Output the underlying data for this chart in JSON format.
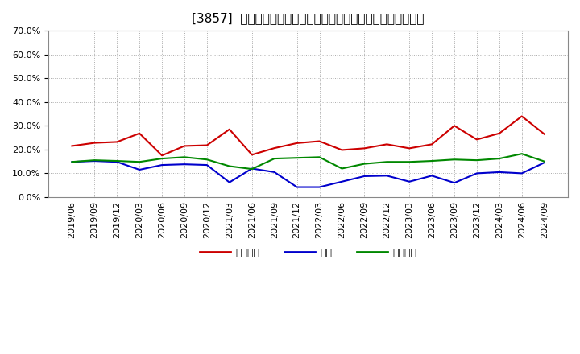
{
  "title": "[3857]  売上債権、在庫、買入債務の総資産に対する比率の推移",
  "xlabel": "",
  "ylabel": "",
  "ylim": [
    0.0,
    0.7
  ],
  "yticks": [
    0.0,
    0.1,
    0.2,
    0.3,
    0.4,
    0.5,
    0.6,
    0.7
  ],
  "ytick_labels": [
    "0.0%",
    "10.0%",
    "20.0%",
    "30.0%",
    "40.0%",
    "50.0%",
    "60.0%",
    "70.0%"
  ],
  "x_labels": [
    "2019/06",
    "2019/09",
    "2019/12",
    "2020/03",
    "2020/06",
    "2020/09",
    "2020/12",
    "2021/03",
    "2021/06",
    "2021/09",
    "2021/12",
    "2022/03",
    "2022/06",
    "2022/09",
    "2022/12",
    "2023/03",
    "2023/06",
    "2023/09",
    "2023/12",
    "2024/03",
    "2024/06",
    "2024/09"
  ],
  "series": {
    "売上債権": {
      "color": "#cc0000",
      "values": [
        0.215,
        0.228,
        0.232,
        0.268,
        0.175,
        0.215,
        0.218,
        0.285,
        0.178,
        0.206,
        0.227,
        0.235,
        0.198,
        0.205,
        0.222,
        0.205,
        0.222,
        0.3,
        0.242,
        0.268,
        0.34,
        0.265
      ]
    },
    "在庫": {
      "color": "#0000cc",
      "values": [
        0.148,
        0.152,
        0.148,
        0.115,
        0.135,
        0.138,
        0.135,
        0.062,
        0.12,
        0.105,
        0.042,
        0.042,
        0.065,
        0.088,
        0.09,
        0.065,
        0.09,
        0.06,
        0.1,
        0.105,
        0.1,
        0.145
      ]
    },
    "買入債務": {
      "color": "#008800",
      "values": [
        0.148,
        0.155,
        0.152,
        0.148,
        0.162,
        0.168,
        0.158,
        0.13,
        0.118,
        0.162,
        0.165,
        0.168,
        0.12,
        0.14,
        0.148,
        0.148,
        0.152,
        0.158,
        0.155,
        0.162,
        0.182,
        0.15
      ]
    }
  },
  "legend": {
    "entries": [
      "売上債権",
      "在庫",
      "買入債務"
    ],
    "colors": [
      "#cc0000",
      "#0000cc",
      "#008800"
    ]
  },
  "bg_color": "#ffffff",
  "grid_color": "#aaaaaa",
  "title_fontsize": 11,
  "tick_fontsize": 8
}
